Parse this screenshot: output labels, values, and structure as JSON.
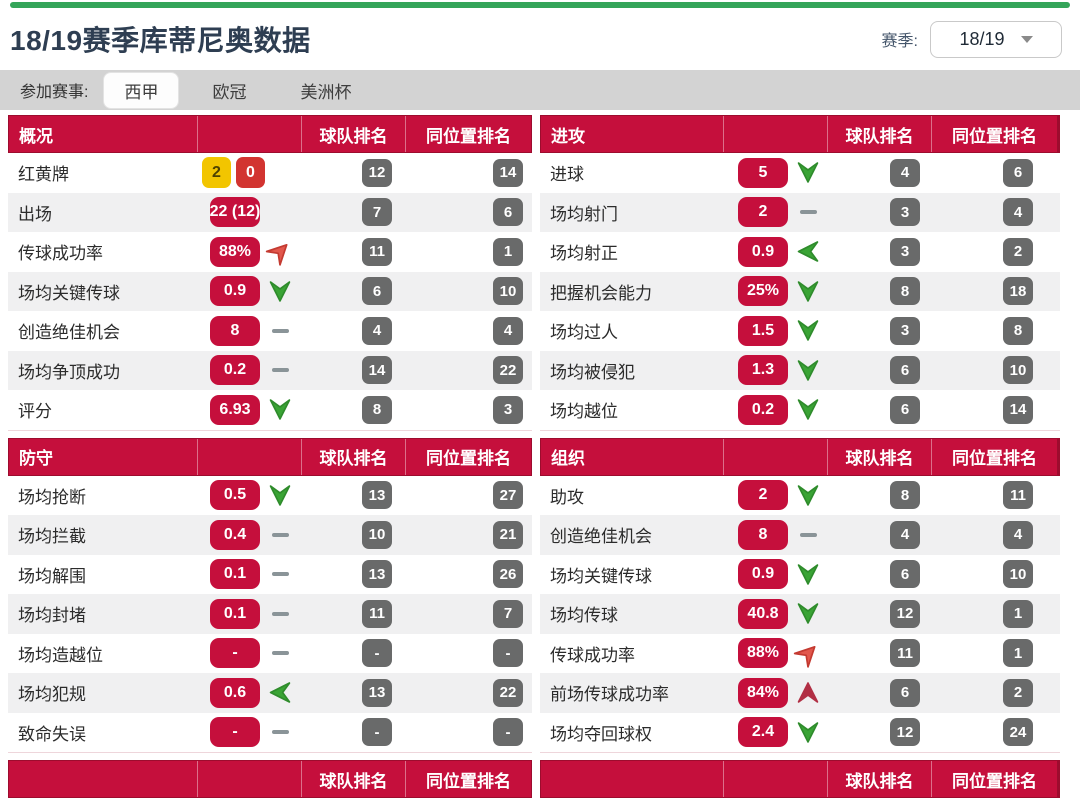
{
  "header": {
    "title": "18/19赛季库蒂尼奥数据",
    "season_label": "赛季:",
    "season_value": "18/19"
  },
  "tabs": {
    "label": "参加赛事:",
    "items": [
      {
        "name": "laliga",
        "label": "西甲",
        "selected": true
      },
      {
        "name": "ucl",
        "label": "欧冠",
        "selected": false
      },
      {
        "name": "copa-america",
        "label": "美洲杯",
        "selected": false
      }
    ]
  },
  "rank_headers": {
    "team": "球队排名",
    "position": "同位置排名"
  },
  "panels": [
    {
      "id": "overview",
      "title": "概况",
      "rows": [
        {
          "label": "红黄牌",
          "type": "cards",
          "yellow_cards": "2",
          "red_cards": "0",
          "trend": "none",
          "team": "12",
          "pos": "14"
        },
        {
          "label": "出场",
          "value": "22 (12)",
          "trend": "none",
          "team": "7",
          "pos": "6"
        },
        {
          "label": "传球成功率",
          "value": "88%",
          "trend": "up-right-red",
          "team": "11",
          "pos": "1"
        },
        {
          "label": "场均关键传球",
          "value": "0.9",
          "trend": "down-green",
          "team": "6",
          "pos": "10"
        },
        {
          "label": "创造绝佳机会",
          "value": "8",
          "trend": "flat",
          "team": "4",
          "pos": "4"
        },
        {
          "label": "场均争顶成功",
          "value": "0.2",
          "trend": "flat",
          "team": "14",
          "pos": "22"
        },
        {
          "label": "评分",
          "value": "6.93",
          "trend": "down-green",
          "team": "8",
          "pos": "3"
        }
      ]
    },
    {
      "id": "attack",
      "title": "进攻",
      "rows": [
        {
          "label": "进球",
          "value": "5",
          "trend": "down-green",
          "team": "4",
          "pos": "6"
        },
        {
          "label": "场均射门",
          "value": "2",
          "trend": "flat",
          "team": "3",
          "pos": "4"
        },
        {
          "label": "场均射正",
          "value": "0.9",
          "trend": "left-green",
          "team": "3",
          "pos": "2"
        },
        {
          "label": "把握机会能力",
          "value": "25%",
          "trend": "down-green",
          "team": "8",
          "pos": "18"
        },
        {
          "label": "场均过人",
          "value": "1.5",
          "trend": "down-green",
          "team": "3",
          "pos": "8"
        },
        {
          "label": "场均被侵犯",
          "value": "1.3",
          "trend": "down-green",
          "team": "6",
          "pos": "10"
        },
        {
          "label": "场均越位",
          "value": "0.2",
          "trend": "down-green",
          "team": "6",
          "pos": "14"
        }
      ]
    },
    {
      "id": "defense",
      "title": "防守",
      "rows": [
        {
          "label": "场均抢断",
          "value": "0.5",
          "trend": "down-green",
          "team": "13",
          "pos": "27"
        },
        {
          "label": "场均拦截",
          "value": "0.4",
          "trend": "flat",
          "team": "10",
          "pos": "21"
        },
        {
          "label": "场均解围",
          "value": "0.1",
          "trend": "flat",
          "team": "13",
          "pos": "26"
        },
        {
          "label": "场均封堵",
          "value": "0.1",
          "trend": "flat",
          "team": "11",
          "pos": "7"
        },
        {
          "label": "场均造越位",
          "value": "-",
          "trend": "flat",
          "team": "-",
          "pos": "-"
        },
        {
          "label": "场均犯规",
          "value": "0.6",
          "trend": "left-green",
          "team": "13",
          "pos": "22"
        },
        {
          "label": "致命失误",
          "value": "-",
          "trend": "flat",
          "team": "-",
          "pos": "-"
        }
      ]
    },
    {
      "id": "organization",
      "title": "组织",
      "rows": [
        {
          "label": "助攻",
          "value": "2",
          "trend": "down-green",
          "team": "8",
          "pos": "11"
        },
        {
          "label": "创造绝佳机会",
          "value": "8",
          "trend": "flat",
          "team": "4",
          "pos": "4"
        },
        {
          "label": "场均关键传球",
          "value": "0.9",
          "trend": "down-green",
          "team": "6",
          "pos": "10"
        },
        {
          "label": "场均传球",
          "value": "40.8",
          "trend": "down-green",
          "team": "12",
          "pos": "1"
        },
        {
          "label": "传球成功率",
          "value": "88%",
          "trend": "up-right-red",
          "team": "11",
          "pos": "1"
        },
        {
          "label": "前场传球成功率",
          "value": "84%",
          "trend": "up-red",
          "team": "6",
          "pos": "2"
        },
        {
          "label": "场均夺回球权",
          "value": "2.4",
          "trend": "down-green",
          "team": "12",
          "pos": "24"
        }
      ]
    }
  ],
  "bottom_partial": {
    "title": "",
    "team": "球队排名",
    "position": "同位置排名"
  },
  "colors": {
    "crimson": "#c50f3c",
    "crimson_dark": "#9d0c2e",
    "green": "#3aa435",
    "green_dark": "#2f8c2c",
    "red_arrow": "#e2574c",
    "red_arrow_dark": "#c43a31",
    "dark_red_arrow": "#b12f44",
    "yellow_card": "#f2c500",
    "red_card": "#d23430",
    "rank_gray": "#696a6a",
    "dash_gray": "#8a9498",
    "top_bar_green": "#34a559",
    "tabbar_gray": "#d3d3d3",
    "row_alt": "#f0f0f1",
    "title_color": "#2e3e52"
  }
}
